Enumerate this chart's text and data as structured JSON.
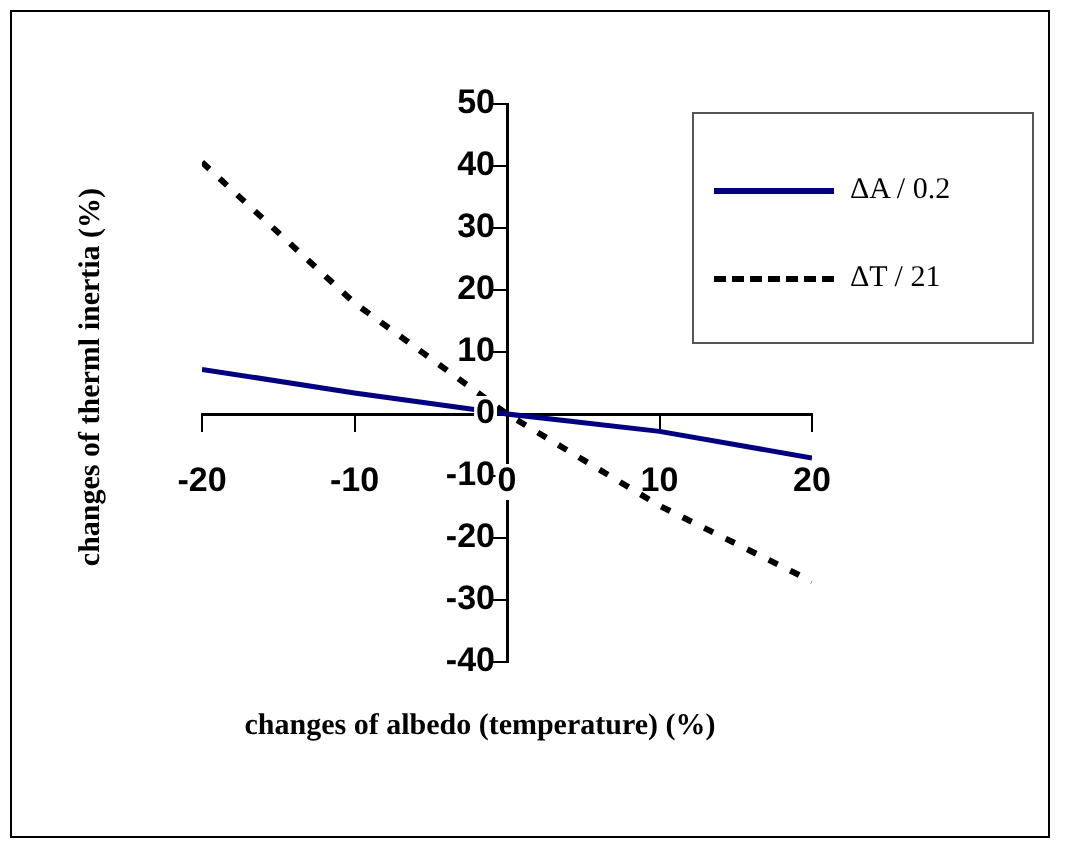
{
  "chart_data": {
    "type": "line",
    "xlabel": "changes of albedo (temperature) (%)",
    "ylabel": "changes of therml inertia (%)",
    "x": [
      -20,
      -10,
      0,
      10,
      20
    ],
    "xlim": [
      -20,
      20
    ],
    "xticks": [
      -20,
      -10,
      0,
      10,
      20
    ],
    "ylim": [
      -40,
      50
    ],
    "yticks": [
      -40,
      -30,
      -20,
      -10,
      0,
      10,
      20,
      30,
      40,
      50
    ],
    "grid": false,
    "legend": "top right",
    "marker": "none",
    "series": [
      {
        "name": "ΔA / 0.2",
        "color": "#000080",
        "values": [
          7.2,
          3.4,
          0,
          -2.8,
          -7.1
        ],
        "line_style": "solid"
      },
      {
        "name": "ΔT / 21",
        "color": "#000000",
        "values": [
          40.6,
          17.9,
          0,
          -14.8,
          -27
        ],
        "line_style": "dashed"
      }
    ]
  }
}
